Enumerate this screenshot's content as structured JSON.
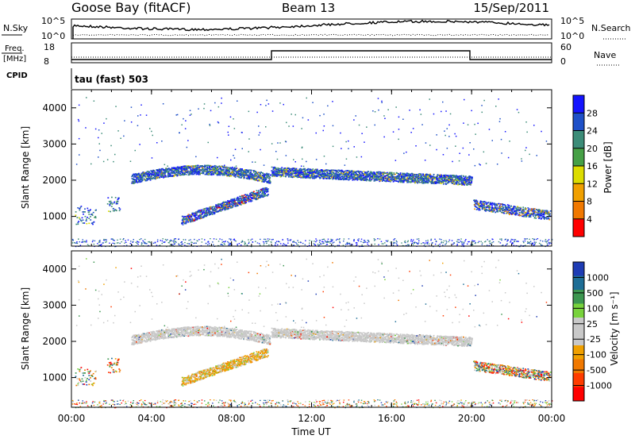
{
  "header": {
    "station": "Goose Bay (fitACF)",
    "beam": "Beam 13",
    "date": "15/Sep/2011"
  },
  "top_panels": {
    "nsky_label": "N.Sky",
    "nsky_tick_top": "10^5",
    "nsky_tick_bottom": "10^0",
    "nsearch_label": "N.Search",
    "nsearch_tick_top": "10^5",
    "nsearch_tick_bottom": "10^0",
    "freq_label_1": "Freq.",
    "freq_label_2": "[MHz]",
    "freq_tick_top": "18",
    "freq_tick_bottom": "8",
    "nave_label": "Nave",
    "nave_tick_top": "60",
    "nave_tick_bottom": "0",
    "cpid_label": "CPID",
    "cpid_value": "tau (fast) 503"
  },
  "chart_data": [
    {
      "type": "heatmap",
      "name": "power",
      "ylabel": "Slant Range [km]",
      "ylim": [
        180,
        4500
      ],
      "yticks": [
        1000,
        2000,
        3000,
        4000
      ],
      "colorbar": {
        "label": "Power [dB]",
        "ticks": [
          "4",
          "8",
          "12",
          "16",
          "20",
          "24",
          "28"
        ],
        "colors": [
          "#1414ff",
          "#1e50c8",
          "#3c8c78",
          "#46a046",
          "#dcdc00",
          "#f0a000",
          "#f07800",
          "#ff0000"
        ]
      }
    },
    {
      "type": "heatmap",
      "name": "velocity",
      "ylabel": "Slant Range [km]",
      "ylim": [
        180,
        4500
      ],
      "yticks": [
        1000,
        2000,
        3000,
        4000
      ],
      "xlabel": "Time UT",
      "xticks": [
        "00:00",
        "04:00",
        "08:00",
        "12:00",
        "16:00",
        "20:00",
        "00:00"
      ],
      "colorbar": {
        "label": "Velocity [m s⁻¹]",
        "ticks": [
          "1000",
          "500",
          "100",
          "25",
          "-25",
          "-100",
          "-500",
          "-1000"
        ],
        "colors": [
          "#1e3cb4",
          "#1e6e96",
          "#3c9650",
          "#78d23c",
          "#c8c8c8",
          "#c8c8c8",
          "#f0a000",
          "#f07800",
          "#ff3c00",
          "#ff0000"
        ]
      }
    }
  ]
}
